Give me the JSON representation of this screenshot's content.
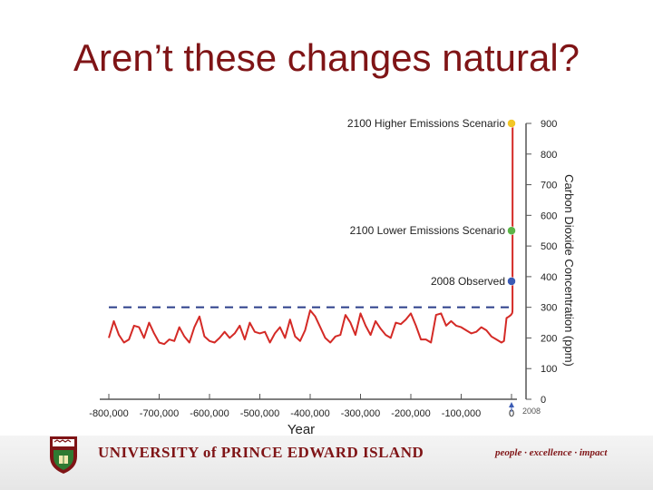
{
  "slide": {
    "title": "Aren’t these changes natural?"
  },
  "footer": {
    "university_name": "UNIVERSITY of PRINCE EDWARD ISLAND",
    "tagline": "people · excellence · impact"
  },
  "chart_data": {
    "type": "line",
    "xlabel": "Year",
    "ylabel": "Carbon Dioxide Concentration (ppm)",
    "xlim": [
      -800000,
      2100
    ],
    "ylim": [
      0,
      900
    ],
    "x_ticks": [
      -800000,
      -700000,
      -600000,
      -500000,
      -400000,
      -300000,
      -200000,
      -100000,
      0
    ],
    "x_tick_labels": [
      "-800,000",
      "-700,000",
      "-600,000",
      "-500,000",
      "-400,000",
      "-300,000",
      "-200,000",
      "-100,000",
      "0"
    ],
    "y_ticks": [
      0,
      100,
      200,
      300,
      400,
      500,
      600,
      700,
      800,
      900
    ],
    "y_tick_labels": [
      "0",
      "100",
      "200",
      "300",
      "400",
      "500",
      "600",
      "700",
      "800",
      "900"
    ],
    "reference_line": {
      "y": 300
    },
    "marker_2008": {
      "x": 2008,
      "label": "2008"
    },
    "series": [
      {
        "color": "#d42a26",
        "x": [
          -800000,
          -790000,
          -780000,
          -770000,
          -760000,
          -750000,
          -740000,
          -730000,
          -720000,
          -710000,
          -700000,
          -690000,
          -680000,
          -670000,
          -660000,
          -650000,
          -640000,
          -630000,
          -620000,
          -610000,
          -600000,
          -590000,
          -580000,
          -570000,
          -560000,
          -550000,
          -540000,
          -530000,
          -520000,
          -510000,
          -500000,
          -490000,
          -480000,
          -470000,
          -460000,
          -450000,
          -440000,
          -430000,
          -420000,
          -410000,
          -400000,
          -390000,
          -380000,
          -370000,
          -360000,
          -350000,
          -340000,
          -330000,
          -320000,
          -310000,
          -300000,
          -290000,
          -280000,
          -270000,
          -260000,
          -250000,
          -240000,
          -230000,
          -220000,
          -210000,
          -200000,
          -190000,
          -180000,
          -170000,
          -160000,
          -150000,
          -140000,
          -130000,
          -120000,
          -110000,
          -100000,
          -90000,
          -80000,
          -70000,
          -60000,
          -50000,
          -40000,
          -30000,
          -20000,
          -15000,
          -10000,
          -5000,
          -1000,
          0,
          1000,
          1800,
          1900,
          1950,
          2008,
          2100
        ],
        "y": [
          200,
          255,
          210,
          185,
          195,
          240,
          235,
          200,
          250,
          215,
          185,
          180,
          195,
          190,
          235,
          205,
          185,
          235,
          270,
          205,
          190,
          185,
          200,
          220,
          200,
          215,
          240,
          195,
          250,
          220,
          215,
          220,
          185,
          215,
          235,
          200,
          260,
          205,
          190,
          225,
          290,
          270,
          235,
          200,
          185,
          205,
          210,
          275,
          250,
          210,
          280,
          240,
          210,
          255,
          230,
          210,
          200,
          250,
          245,
          260,
          280,
          240,
          195,
          195,
          185,
          275,
          280,
          240,
          255,
          240,
          235,
          225,
          215,
          220,
          235,
          225,
          205,
          195,
          185,
          190,
          265,
          270,
          275,
          278,
          280,
          285,
          296,
          311,
          385,
          900
        ]
      }
    ],
    "annotations": [
      {
        "label": "2100 Higher Emissions Scenario",
        "value": 900,
        "color": "#f2c626"
      },
      {
        "label": "2100 Lower Emissions Scenario",
        "value": 550,
        "color": "#5bb548"
      },
      {
        "label": "2008 Observed",
        "value": 385,
        "color": "#3a5bb5"
      }
    ]
  }
}
